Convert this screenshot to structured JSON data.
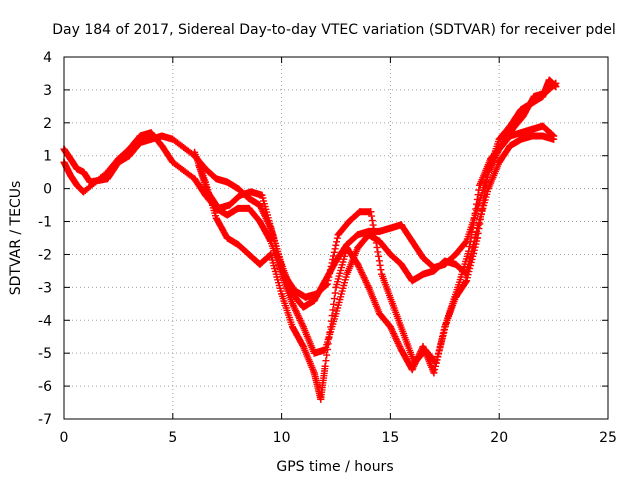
{
  "chart_data": {
    "type": "scatter",
    "title": "Day 184 of 2017, Sidereal Day-to-day VTEC variation (SDTVAR) for receiver pdel",
    "xlabel": "GPS time / hours",
    "ylabel": "SDTVAR / TECUs",
    "xlim": [
      0,
      25
    ],
    "ylim": [
      -7,
      4
    ],
    "xticks": [
      0,
      5,
      10,
      15,
      20,
      25
    ],
    "yticks": [
      -7,
      -6,
      -5,
      -4,
      -3,
      -2,
      -1,
      0,
      1,
      2,
      3,
      4
    ],
    "grid": true,
    "legend": "none",
    "marker": "+",
    "color": "#ff0000",
    "series": [
      {
        "points": [
          [
            0.0,
            1.2
          ],
          [
            0.3,
            0.9
          ],
          [
            0.6,
            0.6
          ],
          [
            0.9,
            0.5
          ],
          [
            1.2,
            0.2
          ],
          [
            2.0,
            0.3
          ],
          [
            2.5,
            0.8
          ],
          [
            3.0,
            1.0
          ],
          [
            3.5,
            1.4
          ],
          [
            4.0,
            1.5
          ],
          [
            4.5,
            1.6
          ],
          [
            5.0,
            1.5
          ],
          [
            6.0,
            1.0
          ],
          [
            6.5,
            0.6
          ],
          [
            7.0,
            0.3
          ],
          [
            7.5,
            0.2
          ],
          [
            8.0,
            0.0
          ],
          [
            8.5,
            -0.3
          ],
          [
            9.0,
            -0.5
          ],
          [
            9.5,
            -1.2
          ],
          [
            10.0,
            -2.3
          ],
          [
            10.5,
            -3.2
          ],
          [
            11.0,
            -3.6
          ],
          [
            11.5,
            -3.4
          ],
          [
            12.0,
            -2.8
          ],
          [
            12.5,
            -2.2
          ],
          [
            13.0,
            -1.7
          ],
          [
            13.5,
            -1.4
          ],
          [
            14.0,
            -1.3
          ],
          [
            14.5,
            -1.3
          ],
          [
            15.0,
            -1.2
          ],
          [
            15.5,
            -1.1
          ],
          [
            16.0,
            -1.6
          ],
          [
            16.5,
            -2.1
          ],
          [
            17.0,
            -2.4
          ],
          [
            17.5,
            -2.3
          ],
          [
            18.0,
            -2.0
          ],
          [
            18.5,
            -1.6
          ],
          [
            19.0,
            -0.6
          ],
          [
            19.5,
            0.5
          ],
          [
            20.0,
            1.2
          ],
          [
            20.5,
            1.6
          ],
          [
            21.0,
            1.7
          ],
          [
            21.5,
            1.8
          ],
          [
            22.0,
            1.9
          ],
          [
            22.5,
            1.6
          ]
        ]
      },
      {
        "points": [
          [
            0.0,
            0.8
          ],
          [
            0.3,
            0.4
          ],
          [
            0.6,
            0.1
          ],
          [
            0.9,
            -0.1
          ],
          [
            2.0,
            0.5
          ],
          [
            2.5,
            0.9
          ],
          [
            3.0,
            1.2
          ],
          [
            3.5,
            1.6
          ],
          [
            4.0,
            1.7
          ],
          [
            4.5,
            1.3
          ],
          [
            5.0,
            0.8
          ],
          [
            6.0,
            0.3
          ],
          [
            6.5,
            -0.2
          ],
          [
            7.0,
            -0.6
          ],
          [
            7.5,
            -0.8
          ],
          [
            8.0,
            -0.6
          ],
          [
            8.5,
            -0.6
          ],
          [
            9.0,
            -1.0
          ],
          [
            9.5,
            -1.6
          ],
          [
            10.0,
            -2.6
          ],
          [
            10.5,
            -3.5
          ],
          [
            11.0,
            -4.2
          ],
          [
            11.5,
            -5.0
          ],
          [
            12.0,
            -4.9
          ],
          [
            12.5,
            -3.8
          ],
          [
            13.0,
            -2.6
          ],
          [
            13.5,
            -1.8
          ],
          [
            14.0,
            -1.4
          ],
          [
            14.5,
            -1.6
          ],
          [
            15.0,
            -2.0
          ],
          [
            15.5,
            -2.3
          ],
          [
            16.0,
            -2.8
          ],
          [
            16.5,
            -2.6
          ],
          [
            17.0,
            -2.5
          ],
          [
            17.5,
            -2.2
          ],
          [
            18.0,
            -2.3
          ],
          [
            18.5,
            -2.6
          ],
          [
            19.0,
            -1.2
          ],
          [
            19.5,
            0.0
          ],
          [
            20.0,
            0.8
          ],
          [
            20.5,
            1.3
          ],
          [
            21.0,
            1.5
          ],
          [
            21.5,
            1.6
          ],
          [
            22.0,
            1.6
          ],
          [
            22.5,
            1.5
          ]
        ]
      },
      {
        "points": [
          [
            6.0,
            1.1
          ],
          [
            6.5,
            0.2
          ],
          [
            7.0,
            -0.9
          ],
          [
            7.5,
            -1.5
          ],
          [
            8.0,
            -1.7
          ],
          [
            8.5,
            -2.0
          ],
          [
            9.0,
            -2.3
          ],
          [
            9.5,
            -2.0
          ],
          [
            10.0,
            -3.2
          ],
          [
            10.5,
            -4.2
          ],
          [
            11.0,
            -4.8
          ],
          [
            11.5,
            -5.6
          ],
          [
            11.8,
            -6.4
          ],
          [
            12.0,
            -5.4
          ],
          [
            12.5,
            -3.0
          ],
          [
            13.0,
            -1.8
          ],
          [
            13.5,
            -2.3
          ],
          [
            14.0,
            -3.0
          ],
          [
            14.5,
            -3.8
          ],
          [
            15.0,
            -4.2
          ],
          [
            15.5,
            -4.9
          ],
          [
            16.0,
            -5.5
          ],
          [
            16.5,
            -4.8
          ],
          [
            17.0,
            -5.6
          ],
          [
            17.5,
            -4.2
          ],
          [
            18.0,
            -3.3
          ],
          [
            18.5,
            -2.8
          ],
          [
            19.0,
            -1.5
          ],
          [
            19.5,
            0.5
          ],
          [
            20.0,
            1.5
          ],
          [
            20.5,
            1.9
          ],
          [
            21.0,
            2.4
          ],
          [
            21.5,
            2.6
          ],
          [
            22.0,
            2.8
          ],
          [
            22.3,
            3.3
          ],
          [
            22.6,
            3.1
          ]
        ]
      },
      {
        "points": [
          [
            6.2,
            0.7
          ],
          [
            6.6,
            -0.1
          ],
          [
            7.1,
            -0.6
          ],
          [
            7.6,
            -0.5
          ],
          [
            8.1,
            -0.2
          ],
          [
            8.6,
            -0.1
          ],
          [
            9.1,
            -0.2
          ],
          [
            9.6,
            -1.4
          ],
          [
            10.1,
            -2.6
          ],
          [
            10.6,
            -3.1
          ],
          [
            11.1,
            -3.3
          ],
          [
            11.6,
            -3.2
          ],
          [
            12.1,
            -2.9
          ],
          [
            12.6,
            -1.4
          ],
          [
            13.1,
            -1.0
          ],
          [
            13.6,
            -0.7
          ],
          [
            14.1,
            -0.7
          ],
          [
            14.6,
            -2.6
          ],
          [
            15.1,
            -3.5
          ],
          [
            15.6,
            -4.4
          ],
          [
            16.1,
            -5.3
          ],
          [
            16.6,
            -4.9
          ],
          [
            17.1,
            -5.3
          ],
          [
            17.6,
            -4.0
          ],
          [
            18.1,
            -3.0
          ],
          [
            18.6,
            -1.9
          ],
          [
            19.1,
            0.1
          ],
          [
            19.6,
            0.9
          ],
          [
            20.1,
            1.3
          ],
          [
            20.6,
            1.8
          ],
          [
            21.1,
            2.2
          ],
          [
            21.6,
            2.8
          ],
          [
            22.1,
            2.9
          ],
          [
            22.6,
            3.2
          ]
        ]
      }
    ]
  }
}
